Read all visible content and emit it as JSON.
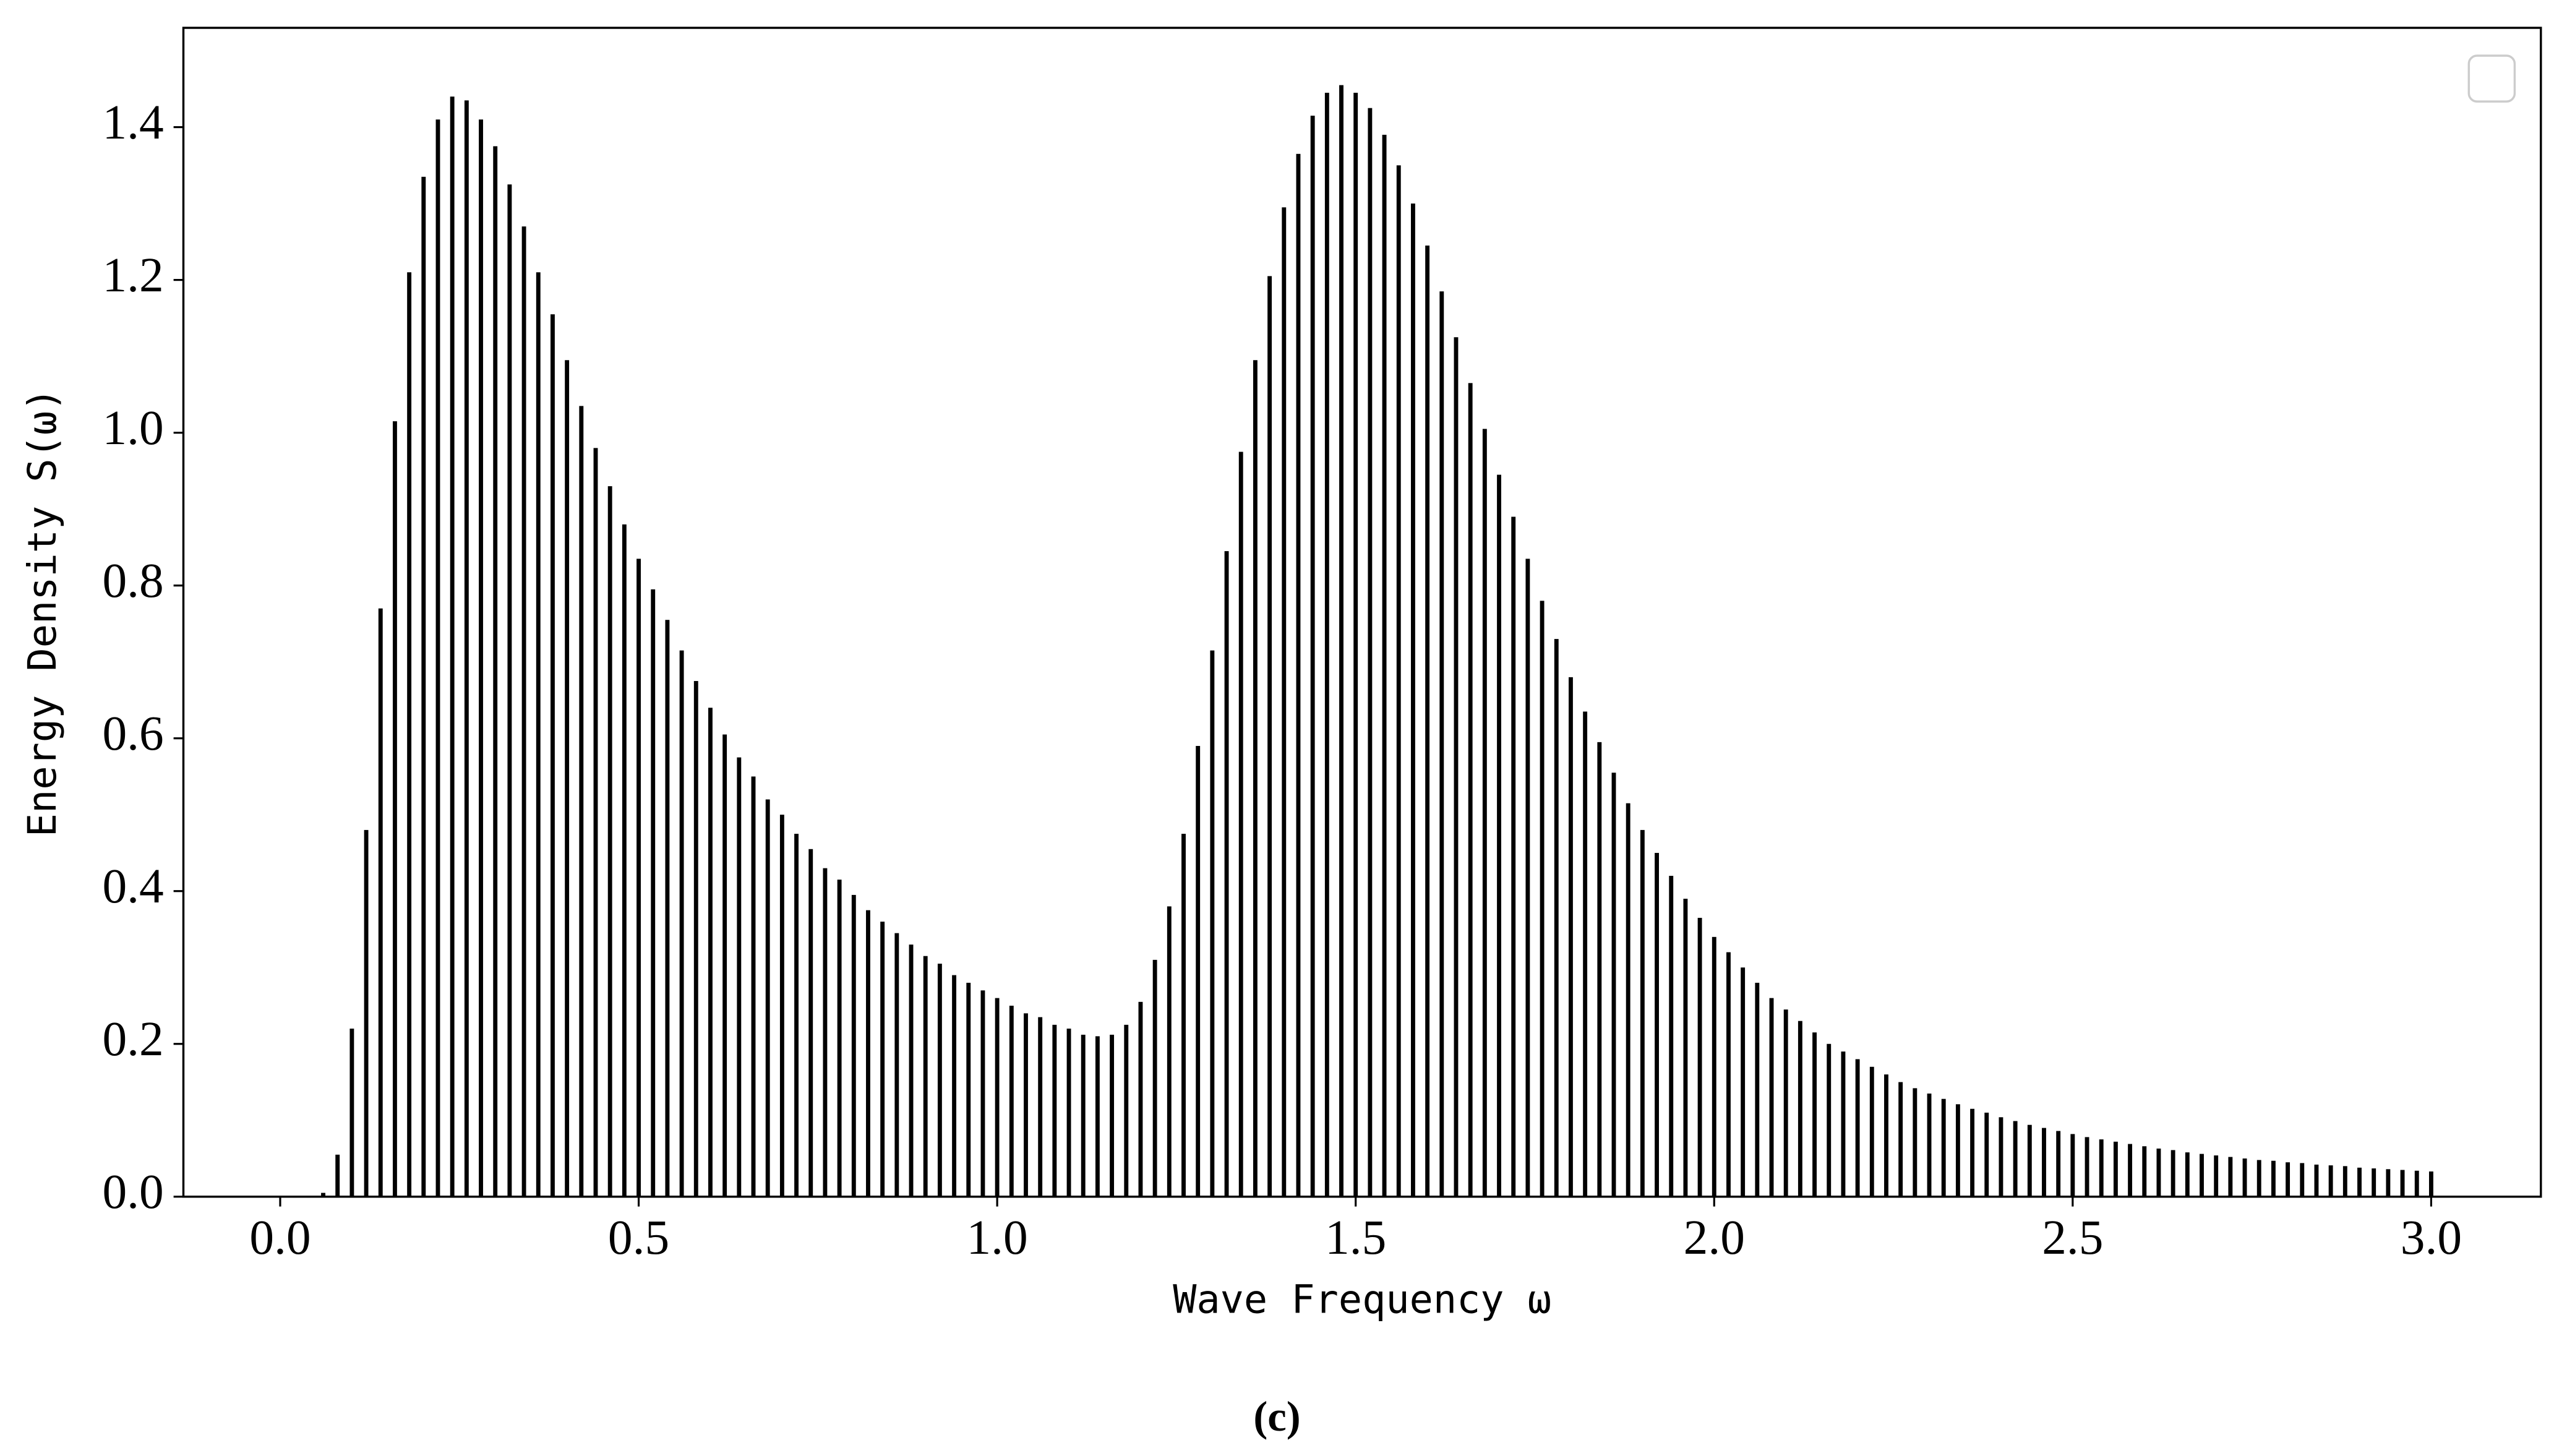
{
  "chart_data": {
    "type": "bar",
    "x_label": "Wave Frequency ω",
    "y_label": "Energy Density S(ω)",
    "caption": "(c)",
    "color": "#000000",
    "x": [
      0.0,
      0.02,
      0.04,
      0.06,
      0.08,
      0.1,
      0.12,
      0.14,
      0.16,
      0.18,
      0.2,
      0.22,
      0.24,
      0.26,
      0.28,
      0.3,
      0.32,
      0.34,
      0.36,
      0.38,
      0.4,
      0.42,
      0.44,
      0.46,
      0.48,
      0.5,
      0.52,
      0.54,
      0.56,
      0.58,
      0.6,
      0.62,
      0.64,
      0.66,
      0.68,
      0.7,
      0.72,
      0.74,
      0.76,
      0.78,
      0.8,
      0.82,
      0.84,
      0.86,
      0.88,
      0.9,
      0.92,
      0.94,
      0.96,
      0.98,
      1.0,
      1.02,
      1.04,
      1.06,
      1.08,
      1.1,
      1.12,
      1.14,
      1.16,
      1.18,
      1.2,
      1.22,
      1.24,
      1.26,
      1.28,
      1.3,
      1.32,
      1.34,
      1.36,
      1.38,
      1.4,
      1.42,
      1.44,
      1.46,
      1.48,
      1.5,
      1.52,
      1.54,
      1.56,
      1.58,
      1.6,
      1.62,
      1.64,
      1.66,
      1.68,
      1.7,
      1.72,
      1.74,
      1.76,
      1.78,
      1.8,
      1.82,
      1.84,
      1.86,
      1.88,
      1.9,
      1.92,
      1.94,
      1.96,
      1.98,
      2.0,
      2.02,
      2.04,
      2.06,
      2.08,
      2.1,
      2.12,
      2.14,
      2.16,
      2.18,
      2.2,
      2.22,
      2.24,
      2.26,
      2.28,
      2.3,
      2.32,
      2.34,
      2.36,
      2.38,
      2.4,
      2.42,
      2.44,
      2.46,
      2.48,
      2.5,
      2.52,
      2.54,
      2.56,
      2.58,
      2.6,
      2.62,
      2.64,
      2.66,
      2.68,
      2.7,
      2.72,
      2.74,
      2.76,
      2.78,
      2.8,
      2.82,
      2.84,
      2.86,
      2.88,
      2.9,
      2.92,
      2.94,
      2.96,
      2.98,
      3.0
    ],
    "values": [
      0,
      0,
      0,
      0.005,
      0.055,
      0.22,
      0.48,
      0.77,
      1.015,
      1.21,
      1.335,
      1.41,
      1.44,
      1.435,
      1.41,
      1.375,
      1.325,
      1.27,
      1.21,
      1.155,
      1.095,
      1.035,
      0.98,
      0.93,
      0.88,
      0.835,
      0.795,
      0.755,
      0.715,
      0.675,
      0.64,
      0.605,
      0.575,
      0.55,
      0.52,
      0.5,
      0.475,
      0.455,
      0.43,
      0.415,
      0.395,
      0.375,
      0.36,
      0.345,
      0.33,
      0.315,
      0.305,
      0.29,
      0.28,
      0.27,
      0.26,
      0.25,
      0.24,
      0.235,
      0.225,
      0.22,
      0.212,
      0.21,
      0.212,
      0.225,
      0.255,
      0.31,
      0.38,
      0.475,
      0.59,
      0.715,
      0.845,
      0.975,
      1.095,
      1.205,
      1.295,
      1.365,
      1.415,
      1.445,
      1.455,
      1.445,
      1.425,
      1.39,
      1.35,
      1.3,
      1.245,
      1.185,
      1.125,
      1.065,
      1.005,
      0.945,
      0.89,
      0.835,
      0.78,
      0.73,
      0.68,
      0.635,
      0.595,
      0.555,
      0.515,
      0.48,
      0.45,
      0.42,
      0.39,
      0.365,
      0.34,
      0.32,
      0.3,
      0.28,
      0.26,
      0.245,
      0.23,
      0.215,
      0.2,
      0.19,
      0.18,
      0.17,
      0.16,
      0.15,
      0.142,
      0.135,
      0.128,
      0.121,
      0.115,
      0.11,
      0.104,
      0.099,
      0.094,
      0.09,
      0.086,
      0.082,
      0.078,
      0.075,
      0.072,
      0.069,
      0.066,
      0.063,
      0.061,
      0.058,
      0.056,
      0.054,
      0.052,
      0.05,
      0.048,
      0.047,
      0.045,
      0.044,
      0.042,
      0.041,
      0.04,
      0.038,
      0.037,
      0.036,
      0.035,
      0.034,
      0.033
    ],
    "xlim": [
      -0.135,
      3.153
    ],
    "ylim": [
      0,
      1.53
    ],
    "xticks": [
      {
        "value": 0,
        "label": "0.0"
      },
      0.5,
      {
        "value": 1,
        "label": "1.0"
      },
      1.5,
      {
        "value": 2,
        "label": "2.0"
      },
      2.5,
      {
        "value": 3,
        "label": "3.0"
      }
    ],
    "yticks": [
      {
        "value": 0,
        "label": "0.0"
      },
      0.2,
      0.4,
      0.6,
      0.8,
      {
        "value": 1,
        "label": "1.0"
      },
      1.2,
      1.4
    ],
    "grid": false
  }
}
